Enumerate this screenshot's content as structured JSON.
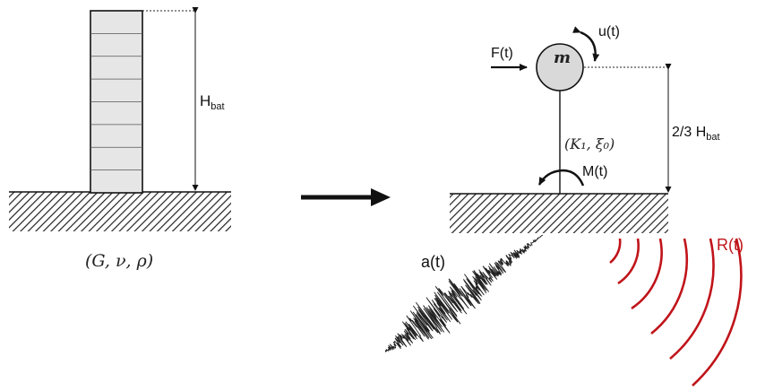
{
  "left": {
    "height_label": "H",
    "height_sub": "bat",
    "soil_label": "(G, ν, ρ)",
    "floors": 8
  },
  "right": {
    "mass_label": "m",
    "force_label": "F(t)",
    "rotation_label": "u(t)",
    "spring_label": "(K₁, ξ₀)",
    "moment_label": "M(t)",
    "height_label": "2/3 H",
    "height_sub": "bat",
    "input_label": "a(t)",
    "radiation_label": "R(t)"
  },
  "colors": {
    "ink": "#111111",
    "building_fill": "#e6e6e6",
    "radiation": "#c0141a"
  }
}
